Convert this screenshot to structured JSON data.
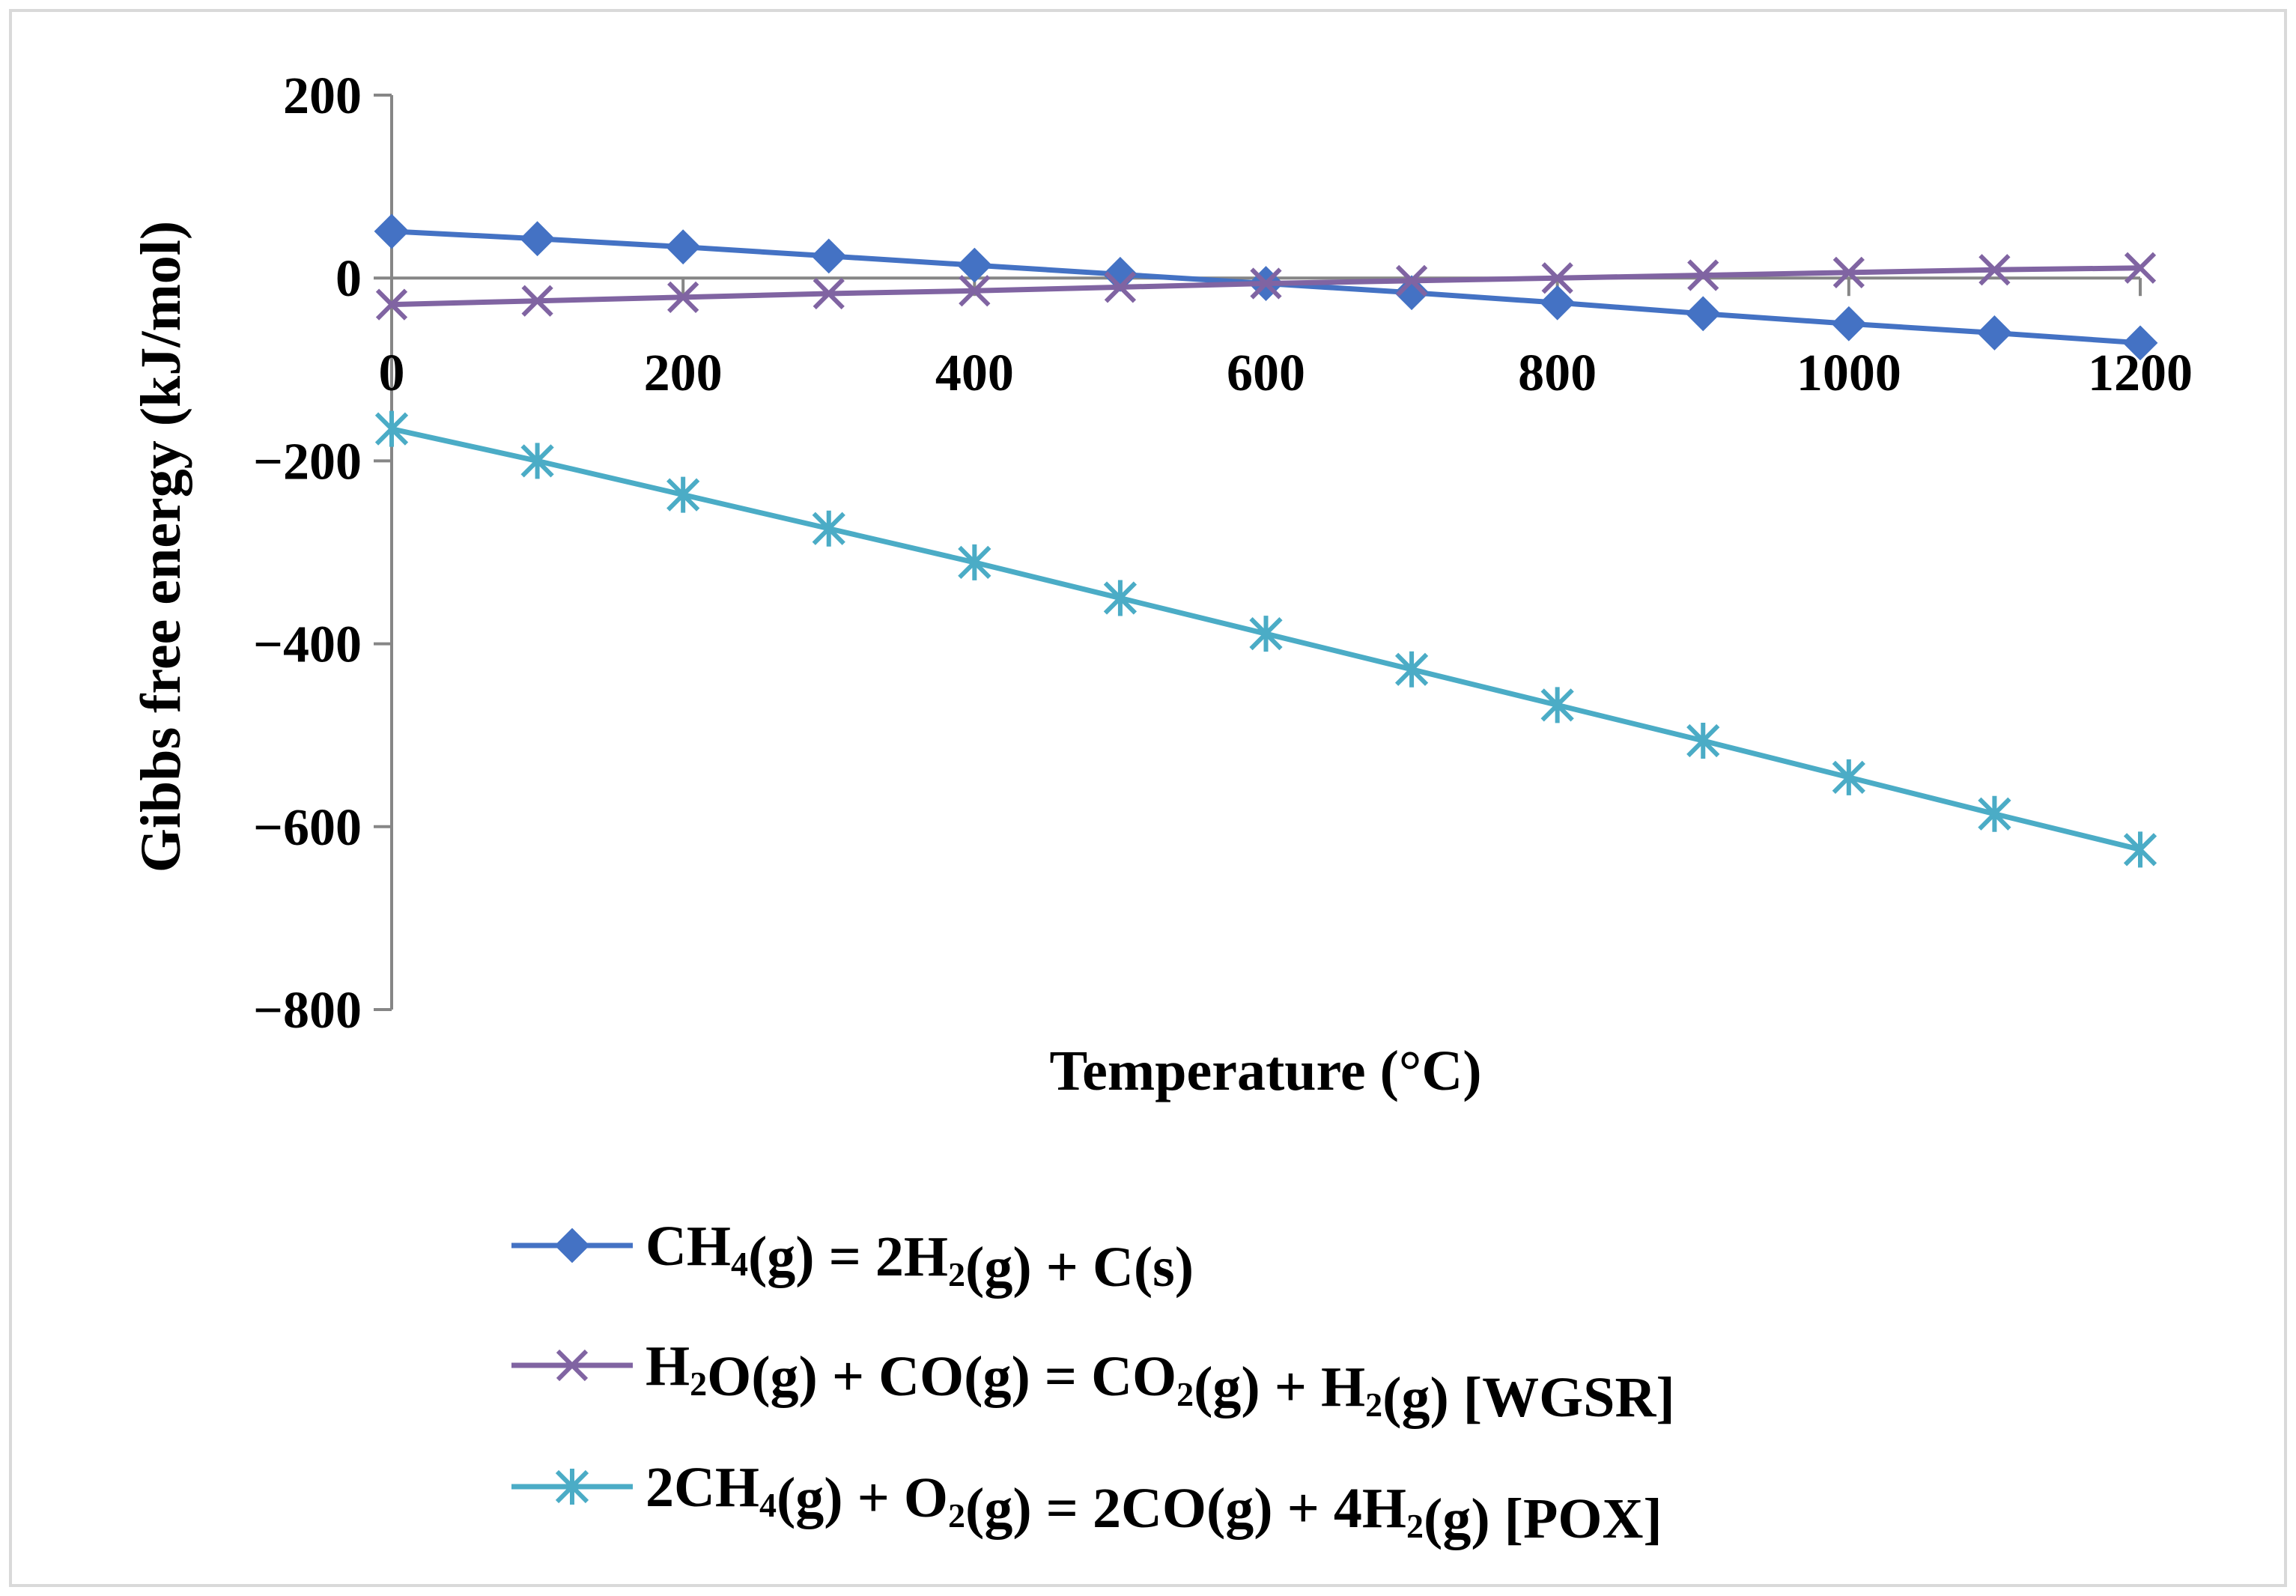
{
  "chart_data": {
    "type": "line",
    "title": "",
    "xlabel": "Temperature (°C)",
    "ylabel": "Gibbs free energy (kJ/mol)",
    "xlim": [
      0,
      1200
    ],
    "ylim": [
      -800,
      200
    ],
    "x_ticks": [
      0,
      200,
      400,
      600,
      800,
      1000,
      1200
    ],
    "y_ticks": [
      200,
      0,
      -200,
      -400,
      -600,
      -800
    ],
    "x_tick_labels": [
      "0",
      "200",
      "400",
      "600",
      "800",
      "1000",
      "1200"
    ],
    "y_tick_labels": [
      "200",
      "0",
      "−200",
      "−400",
      "−600",
      "−800"
    ],
    "grid": false,
    "legend_position": "bottom",
    "x": [
      0,
      100,
      200,
      300,
      400,
      500,
      600,
      700,
      800,
      900,
      1000,
      1100,
      1200
    ],
    "series": [
      {
        "name": "CH4(g) = 2H2(g) + C(s)",
        "legend_parts": [
          [
            "CH",
            ""
          ],
          [
            "4",
            "sub"
          ],
          [
            "(g) = 2H",
            ""
          ],
          [
            "2",
            "sub"
          ],
          [
            "(g) + C(s)",
            ""
          ]
        ],
        "color": "#4472C4",
        "marker": "diamond",
        "values": [
          51,
          43,
          34,
          24,
          14,
          4,
          -6,
          -16,
          -27,
          -39,
          -50,
          -60,
          -71
        ]
      },
      {
        "name": "H2O(g) + CO(g) = CO2(g) + H2(g) [WGSR]",
        "legend_parts": [
          [
            "H",
            ""
          ],
          [
            "2",
            "sub"
          ],
          [
            "O(g) + CO(g) = CO",
            ""
          ],
          [
            "2",
            "sub"
          ],
          [
            "(g) + H",
            ""
          ],
          [
            "2",
            "sub"
          ],
          [
            "(g) [WGSR]",
            ""
          ]
        ],
        "color": "#8064A2",
        "marker": "x",
        "values": [
          -29,
          -25,
          -21,
          -17,
          -14,
          -10,
          -6,
          -3,
          0,
          3,
          6,
          9,
          11
        ]
      },
      {
        "name": "2CH4(g) + O2(g) = 2CO(g) + 4H2(g) [POX]",
        "legend_parts": [
          [
            "2CH",
            ""
          ],
          [
            "4",
            "sub"
          ],
          [
            "(g) + O",
            ""
          ],
          [
            "2",
            "sub"
          ],
          [
            "(g) = 2CO(g) + 4H",
            ""
          ],
          [
            "2",
            "sub"
          ],
          [
            "(g) [POX]",
            ""
          ]
        ],
        "color": "#4BACC6",
        "marker": "asterisk",
        "values": [
          -165,
          -200,
          -237,
          -274,
          -311,
          -350,
          -389,
          -428,
          -467,
          -506,
          -546,
          -586,
          -625
        ]
      }
    ]
  }
}
